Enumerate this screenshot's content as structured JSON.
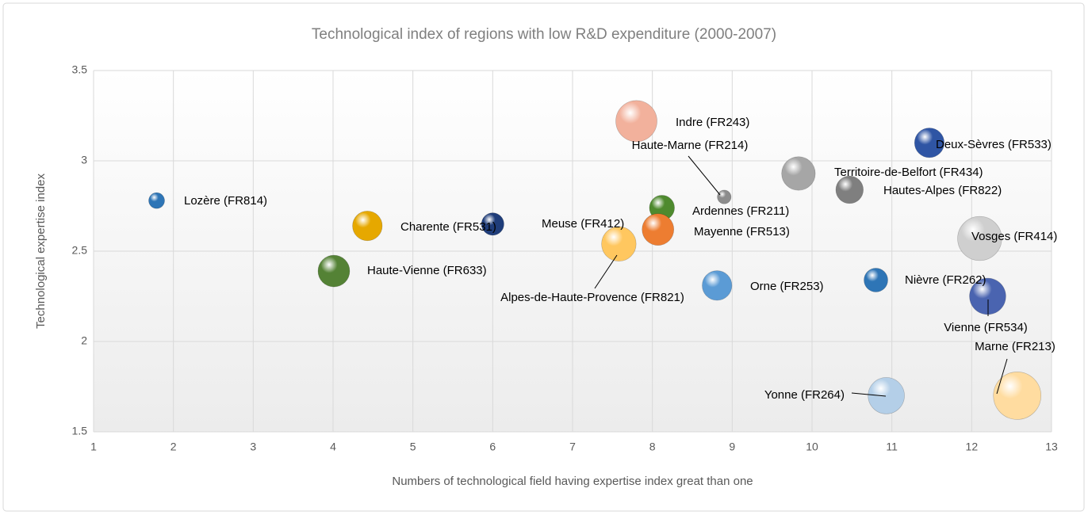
{
  "chart_data": {
    "type": "bubble",
    "title": "Technological index of regions with low R&D expenditure (2000-2007)",
    "x_label": "Numbers of technological field having expertise index great than one",
    "y_label": "Technological expertise index",
    "xlim": [
      1,
      13
    ],
    "xticks": [
      1,
      2,
      3,
      4,
      5,
      6,
      7,
      8,
      9,
      10,
      11,
      12,
      13
    ],
    "ylim": [
      1.5,
      3.5
    ],
    "yticks": [
      1.5,
      2,
      2.5,
      3,
      3.5
    ],
    "grid": true,
    "labels": [
      "Lozère (FR814)",
      "Charente (FR531)",
      "Haute-Vienne (FR633)",
      "Meuse (FR412)",
      "Alpes-de-Haute-Provence (FR821)",
      "Indre (FR243)",
      "Ardennes (FR211)",
      "Haute-Marne (FR214)",
      "Mayenne (FR513)",
      "Orne (FR253)",
      "Territoire-de-Belfort (FR434)",
      "Hautes-Alpes (FR822)",
      "Deux-Sèvres (FR533)",
      "Vosges (FR414)",
      "Nièvre (FR262)",
      "Vienne (FR534)",
      "Yonne (FR264)",
      "Marne (FR213)"
    ],
    "x": [
      1.79,
      4.43,
      4.01,
      6.0,
      7.58,
      7.8,
      8.12,
      8.9,
      8.07,
      8.81,
      9.83,
      10.47,
      11.47,
      12.1,
      10.8,
      12.2,
      10.93,
      12.57
    ],
    "y": [
      2.78,
      2.64,
      2.39,
      2.65,
      2.54,
      3.22,
      2.74,
      2.8,
      2.62,
      2.31,
      2.93,
      2.84,
      3.1,
      2.57,
      2.34,
      2.25,
      1.7,
      1.7
    ],
    "sizes": [
      4,
      14,
      16,
      8,
      19,
      27,
      10,
      3,
      16,
      14,
      18,
      12,
      14,
      31,
      9,
      21,
      21,
      36
    ],
    "colors": [
      "#2e75b6",
      "#e6a800",
      "#548235",
      "#1f3d7a",
      "#ffc75f",
      "#f2b19c",
      "#4e8a2e",
      "#8c8c8c",
      "#ed7d31",
      "#5b9bd5",
      "#a6a6a6",
      "#7f7f7f",
      "#2f55a4",
      "#cfcfcf",
      "#2e75b6",
      "#4a64b0",
      "#b4cfe8",
      "#ffdca0"
    ]
  }
}
